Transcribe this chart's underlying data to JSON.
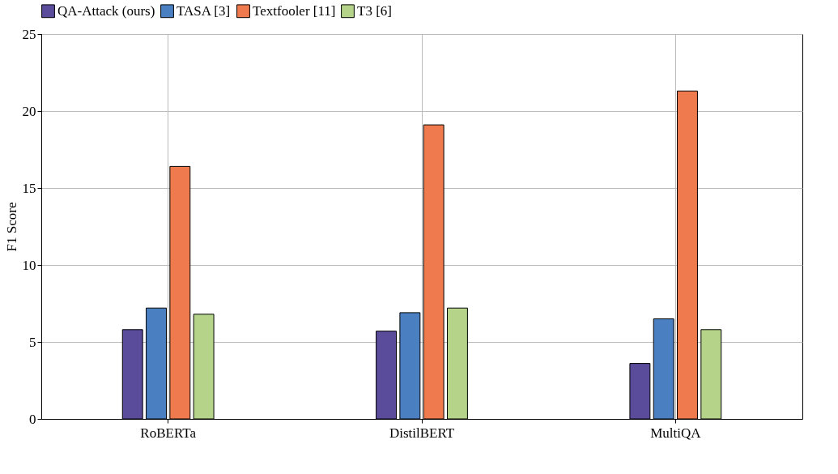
{
  "chart_data": {
    "type": "bar",
    "ylabel": "F1 Score",
    "categories": [
      "RoBERTa",
      "DistilBERT",
      "MultiQA"
    ],
    "series": [
      {
        "name": "QA-Attack (ours)",
        "color": "#5a4b9b",
        "values": [
          5.8,
          5.7,
          3.6
        ]
      },
      {
        "name": "TASA [3]",
        "color": "#4a7fc1",
        "values": [
          7.2,
          6.9,
          6.5
        ]
      },
      {
        "name": "Textfooler [11]",
        "color": "#ee7a4e",
        "values": [
          16.4,
          19.1,
          21.3
        ]
      },
      {
        "name": "T3 [6]",
        "color": "#b5d48a",
        "values": [
          6.8,
          7.2,
          5.8
        ]
      }
    ],
    "ylim": [
      0,
      25
    ],
    "yticks": [
      0,
      5,
      10,
      15,
      20,
      25
    ],
    "grid": true,
    "legend": "top"
  }
}
